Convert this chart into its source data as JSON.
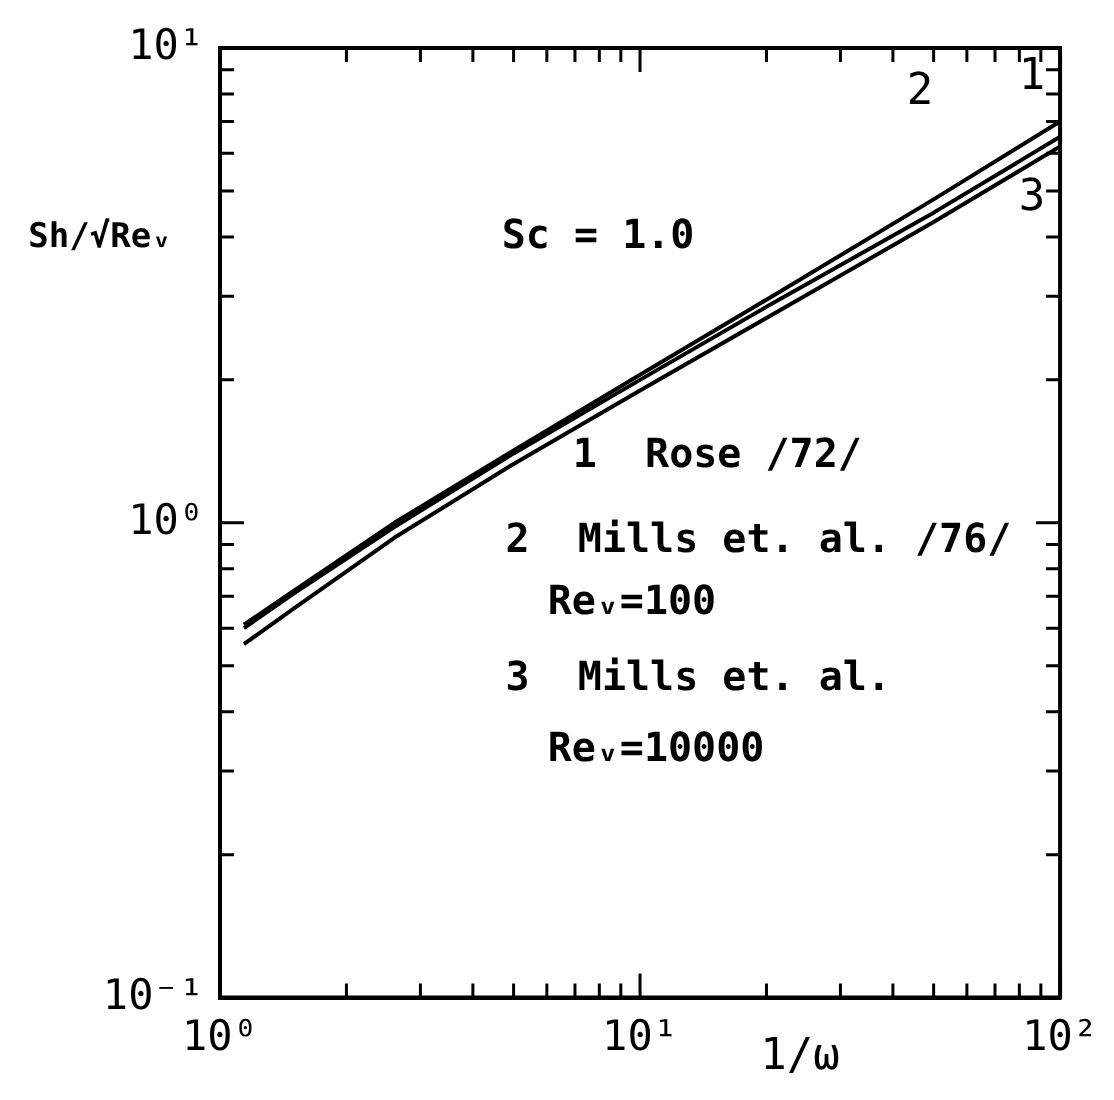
{
  "chart_data": {
    "type": "line",
    "xlabel": "1/ω",
    "ylabel": "Sh/√Reᵥ",
    "log": "xy",
    "grid": false,
    "legend": "top right",
    "marker": "none",
    "line_style": "solid",
    "xlim": [
      1,
      100
    ],
    "ylim": [
      0.1,
      10
    ],
    "xticks": [
      {
        "value": 1,
        "label": "10⁰"
      },
      {
        "value": 2,
        "label": null
      },
      {
        "value": 3,
        "label": null
      },
      {
        "value": 4,
        "label": null
      },
      {
        "value": 5,
        "label": null
      },
      {
        "value": 6,
        "label": null
      },
      {
        "value": 7,
        "label": null
      },
      {
        "value": 8,
        "label": null
      },
      {
        "value": 9,
        "label": null
      },
      {
        "value": 10,
        "label": "10¹"
      },
      {
        "value": 20,
        "label": null
      },
      {
        "value": 30,
        "label": null
      },
      {
        "value": 40,
        "label": null
      },
      {
        "value": 50,
        "label": null
      },
      {
        "value": 60,
        "label": null
      },
      {
        "value": 70,
        "label": null
      },
      {
        "value": 80,
        "label": null
      },
      {
        "value": 90,
        "label": null
      },
      {
        "value": 100,
        "label": "10²"
      }
    ],
    "yticks": [
      {
        "value": 0.1,
        "label": "10⁻¹"
      },
      {
        "value": 0.2,
        "label": null
      },
      {
        "value": 0.3,
        "label": null
      },
      {
        "value": 0.4,
        "label": null
      },
      {
        "value": 0.5,
        "label": null
      },
      {
        "value": 0.6,
        "label": null
      },
      {
        "value": 0.7,
        "label": null
      },
      {
        "value": 0.8,
        "label": null
      },
      {
        "value": 0.9,
        "label": null
      },
      {
        "value": 1,
        "label": "10⁰"
      },
      {
        "value": 2,
        "label": null
      },
      {
        "value": 3,
        "label": null
      },
      {
        "value": 4,
        "label": null
      },
      {
        "value": 5,
        "label": null
      },
      {
        "value": 6,
        "label": null
      },
      {
        "value": 7,
        "label": null
      },
      {
        "value": 8,
        "label": null
      },
      {
        "value": 9,
        "label": null
      },
      {
        "value": 10,
        "label": "10¹"
      }
    ],
    "x": [
      1.14,
      1.5,
      2.6,
      5,
      10,
      20,
      50,
      100
    ],
    "series": [
      {
        "name": "1",
        "color": "#000000",
        "values": [
          0.61,
          0.72,
          1.0,
          1.42,
          2.05,
          2.95,
          4.8,
          7.0
        ]
      },
      {
        "name": "2",
        "color": "#000000",
        "values": [
          0.6,
          0.71,
          0.98,
          1.4,
          2.0,
          2.85,
          4.5,
          6.5
        ]
      },
      {
        "name": "3",
        "color": "#000000",
        "values": [
          0.555,
          0.66,
          0.93,
          1.33,
          1.9,
          2.7,
          4.3,
          6.2
        ]
      }
    ],
    "annotations": [
      "Sc = 1.0",
      "1  Rose /72/",
      "2  Mills et. al. /76/",
      "Reᵥ=100",
      "3  Mills et. al.",
      "Reᵥ=10000"
    ]
  }
}
